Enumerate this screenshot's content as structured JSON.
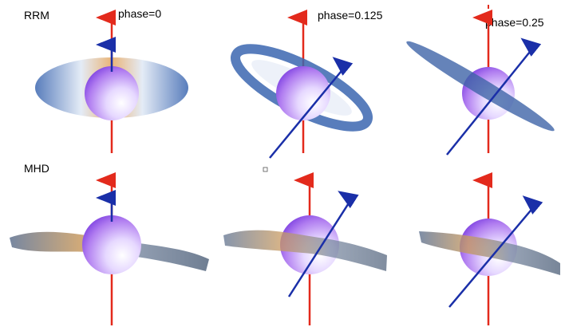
{
  "rows": [
    {
      "label": "RRM"
    },
    {
      "label": "MHD"
    }
  ],
  "columns": [
    {
      "phase_label": "phase=0"
    },
    {
      "phase_label": "phase=0.125"
    },
    {
      "phase_label": "phase=0.25"
    }
  ]
}
